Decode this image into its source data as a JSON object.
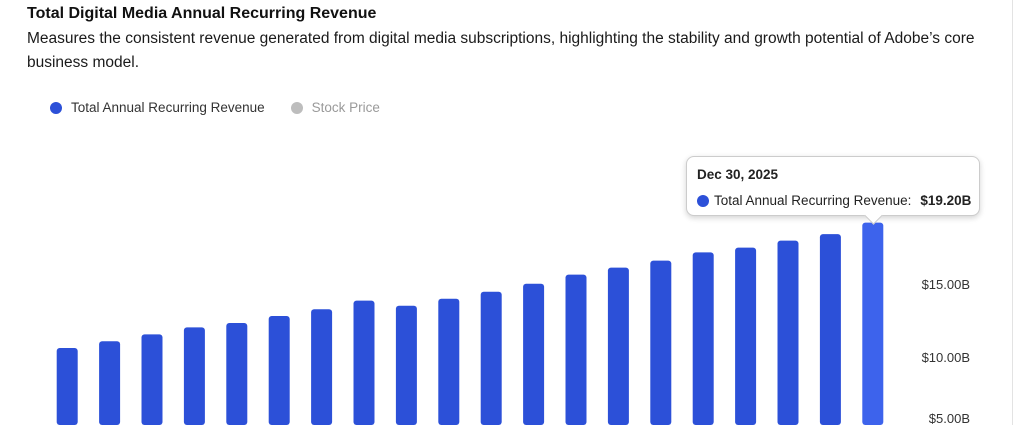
{
  "header": {
    "title": "Total Digital Media Annual Recurring Revenue",
    "description": "Measures the consistent revenue generated from digital media subscriptions, highlighting the stability and growth potential of Adobe’s core business model."
  },
  "legend": [
    {
      "label": "Total Annual Recurring Revenue",
      "color": "#2c50d8"
    },
    {
      "label": "Stock Price",
      "color": "#bdbdbd"
    }
  ],
  "tooltip": {
    "date": "Dec 30, 2025",
    "series": "Total Annual Recurring Revenue:",
    "value": "$19.20B"
  },
  "chart_data": {
    "type": "bar",
    "title": "Total Digital Media Annual Recurring Revenue",
    "series": [
      {
        "name": "Total Annual Recurring Revenue",
        "unit": "USD billions",
        "values": [
          10.62,
          11.08,
          11.55,
          12.03,
          12.33,
          12.81,
          13.27,
          13.86,
          13.51,
          13.99,
          14.47,
          15.02,
          15.64,
          16.12,
          16.6,
          17.17,
          17.49,
          17.97,
          18.42,
          19.2
        ]
      }
    ],
    "y_ticks": [
      {
        "value": 15,
        "label": "$15.00B"
      },
      {
        "value": 10,
        "label": "$10.00B"
      },
      {
        "value": 5,
        "label": "$5.00B"
      }
    ],
    "highlighted_index": 19,
    "bar_color": "#2c50d8",
    "highlight_color": "#3d63ec"
  }
}
